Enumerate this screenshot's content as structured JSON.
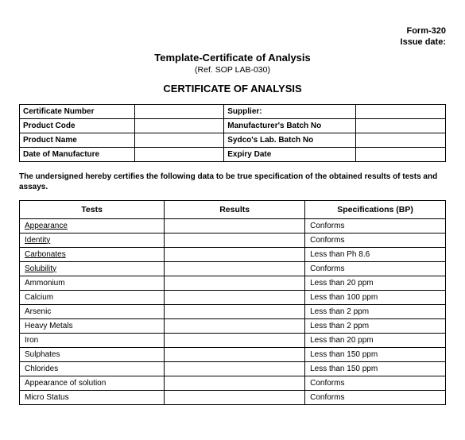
{
  "form_no": "Form-320",
  "issue_date_label": "Issue date:",
  "title_template": "Template-Certificate of Analysis",
  "ref": "(Ref. SOP LAB-030)",
  "title_main": "CERTIFICATE OF ANALYSIS",
  "info": {
    "cert_no_label": "Certificate Number",
    "cert_no_val": "",
    "supplier_label": "Supplier:",
    "supplier_val": "",
    "prod_code_label": "Product Code",
    "prod_code_val": "",
    "mfg_batch_label": "Manufacturer's Batch No",
    "mfg_batch_val": "",
    "prod_name_label": "Product Name",
    "prod_name_val": "",
    "sydco_batch_label": "Sydco's Lab. Batch No",
    "sydco_batch_val": "",
    "dom_label": "Date of Manufacture",
    "dom_val": "",
    "expiry_label": "Expiry Date",
    "expiry_val": ""
  },
  "statement": "The undersigned hereby certifies the following data to be true specification of the obtained results of tests and assays.",
  "columns": {
    "tests": "Tests",
    "results": "Results",
    "specs": "Specifications (BP)"
  },
  "rows": [
    {
      "test": "Appearance",
      "underline": true,
      "result": "",
      "spec": "Conforms"
    },
    {
      "test": "Identity",
      "underline": true,
      "result": "",
      "spec": "Conforms"
    },
    {
      "test": "Carbonates",
      "underline": true,
      "result": "",
      "spec": "Less than Ph 8.6"
    },
    {
      "test": "Solubility",
      "underline": true,
      "result": "",
      "spec": "Conforms"
    },
    {
      "test": "Ammonium",
      "underline": false,
      "result": "",
      "spec": "Less than 20 ppm"
    },
    {
      "test": "Calcium",
      "underline": false,
      "result": "",
      "spec": "Less than 100 ppm"
    },
    {
      "test": "Arsenic",
      "underline": false,
      "result": "",
      "spec": "Less than 2 ppm"
    },
    {
      "test": "Heavy Metals",
      "underline": false,
      "result": "",
      "spec": "Less than 2 ppm"
    },
    {
      "test": "Iron",
      "underline": false,
      "result": "",
      "spec": "Less than 20 ppm"
    },
    {
      "test": "Sulphates",
      "underline": false,
      "result": "",
      "spec": "Less than 150 ppm"
    },
    {
      "test": "Chlorides",
      "underline": false,
      "result": "",
      "spec": "Less than 150 ppm"
    },
    {
      "test": "Appearance of solution",
      "underline": false,
      "result": "",
      "spec": "Conforms"
    },
    {
      "test": "Micro Status",
      "underline": false,
      "result": "",
      "spec": "Conforms"
    }
  ]
}
